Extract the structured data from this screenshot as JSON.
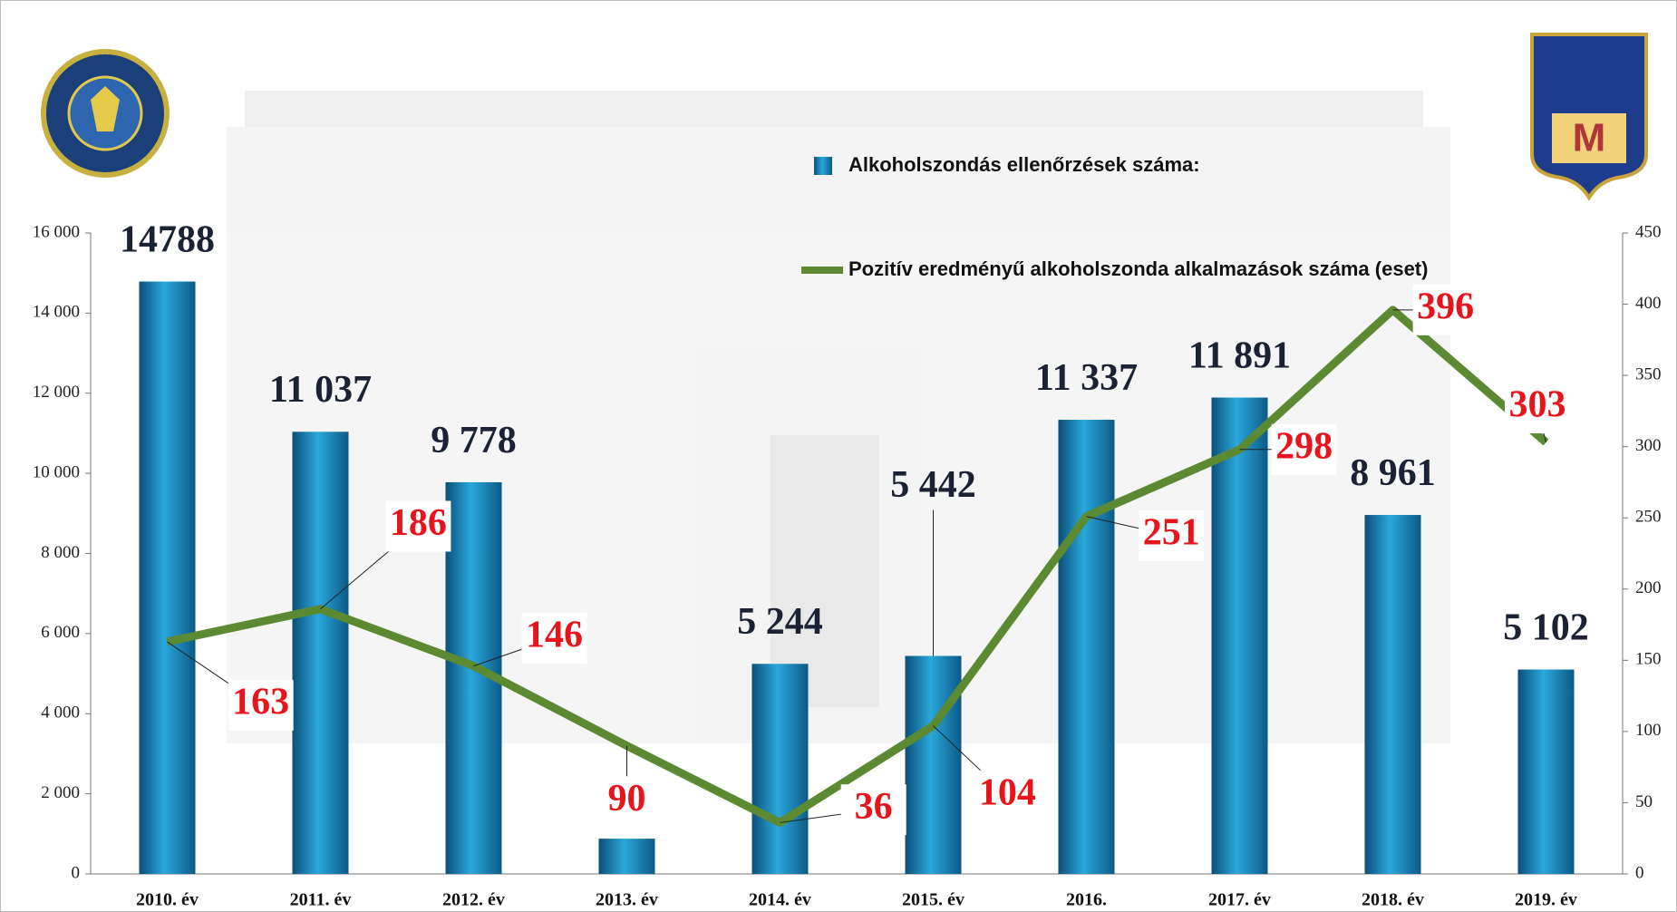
{
  "chart_data": {
    "type": "bar",
    "categories": [
      "2010. év",
      "2011. év",
      "2012. év",
      "2013. év",
      "2014. év",
      "2015. év",
      "2016.",
      "2017. év",
      "2018. év",
      "2019. év"
    ],
    "series": [
      {
        "name": "Alkoholszondás ellenőrzések száma:",
        "type": "bar",
        "color": "#1786b8",
        "values": [
          14788,
          11037,
          9778,
          880,
          5244,
          5442,
          11337,
          11891,
          8961,
          5102
        ],
        "value_labels": [
          "14788",
          "11 037",
          "9 778",
          null,
          "5 244",
          "5 442",
          "11 337",
          "11 891",
          "8 961",
          "5 102"
        ]
      },
      {
        "name": "Pozitív eredményű alkoholszonda alkalmazások száma (eset)",
        "type": "line",
        "color": "#5b8a32",
        "axis": "y2",
        "values": [
          163,
          186,
          146,
          90,
          36,
          104,
          251,
          298,
          396,
          303
        ]
      }
    ],
    "ylim": [
      0,
      16000
    ],
    "yticks": [
      0,
      {
        "value": 2000,
        "label": "2 000"
      },
      {
        "value": 4000,
        "label": "4 000"
      },
      {
        "value": 6000,
        "label": "6 000"
      },
      {
        "value": 8000,
        "label": "8 000"
      },
      {
        "value": 10000,
        "label": "10 000"
      },
      {
        "value": 12000,
        "label": "12 000"
      },
      {
        "value": 14000,
        "label": "14 000"
      },
      {
        "value": 16000,
        "label": "16 000"
      }
    ],
    "y2lim": [
      0,
      450
    ],
    "y2ticks": [
      0,
      50,
      100,
      150,
      200,
      250,
      300,
      350,
      400,
      450
    ]
  }
}
